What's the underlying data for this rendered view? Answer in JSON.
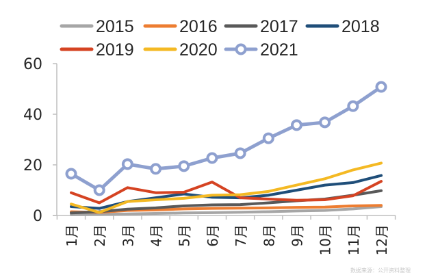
{
  "chart_data": {
    "type": "line",
    "title": "",
    "xlabel": "",
    "ylabel": "",
    "categories": [
      "1月",
      "2月",
      "3月",
      "4月",
      "5月",
      "6月",
      "7月",
      "8月",
      "9月",
      "10月",
      "11月",
      "12月"
    ],
    "ylim": [
      0,
      60
    ],
    "yticks": [
      0,
      20,
      40,
      60
    ],
    "grid": false,
    "legend_position": "top",
    "series": [
      {
        "name": "2015",
        "color": "#a6a6a6",
        "markers": false,
        "values": [
          0.3,
          0.4,
          0.6,
          0.8,
          1.0,
          1.1,
          1.3,
          1.5,
          1.8,
          2.0,
          2.6,
          3.5
        ]
      },
      {
        "name": "2016",
        "color": "#ed7d31",
        "markers": false,
        "values": [
          1.5,
          1.2,
          2.0,
          2.2,
          2.6,
          2.8,
          2.9,
          3.0,
          3.2,
          3.3,
          3.8,
          4.0
        ]
      },
      {
        "name": "2017",
        "color": "#595959",
        "markers": false,
        "values": [
          1.0,
          1.5,
          2.5,
          3.0,
          3.8,
          4.2,
          4.3,
          5.0,
          5.8,
          6.5,
          8.0,
          9.8
        ]
      },
      {
        "name": "2018",
        "color": "#1f4e79",
        "markers": false,
        "values": [
          3.5,
          2.8,
          5.5,
          7.0,
          8.5,
          7.2,
          7.0,
          8.0,
          10.0,
          12.0,
          13.0,
          15.8
        ]
      },
      {
        "name": "2019",
        "color": "#d54322",
        "markers": false,
        "values": [
          9.0,
          5.0,
          11.0,
          9.0,
          9.2,
          13.2,
          7.0,
          6.5,
          6.0,
          6.2,
          7.8,
          13.5
        ]
      },
      {
        "name": "2020",
        "color": "#f4b923",
        "markers": false,
        "values": [
          4.5,
          1.2,
          5.5,
          6.2,
          6.8,
          8.0,
          8.2,
          9.5,
          12.0,
          14.5,
          18.0,
          20.7
        ]
      },
      {
        "name": "2021",
        "color": "#8ea0cf",
        "markers": true,
        "values": [
          16.5,
          10.0,
          20.3,
          18.4,
          19.5,
          22.7,
          24.6,
          30.5,
          35.7,
          36.8,
          43.2,
          50.8
        ]
      }
    ]
  },
  "footer": {
    "watermark": "数据来源：公开资料整理"
  }
}
